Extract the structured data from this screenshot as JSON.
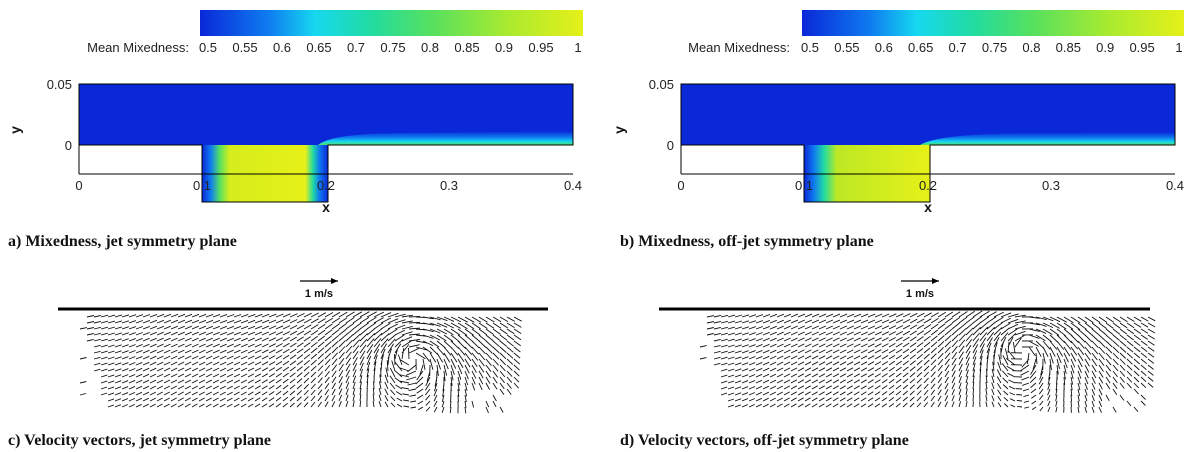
{
  "colors": {
    "low": "#0a28d8",
    "stops": [
      "#0a28d8",
      "#0f7cf0",
      "#16d8f0",
      "#22dca0",
      "#55e060",
      "#a8ea30",
      "#e6f018"
    ],
    "high": "#e6f018"
  },
  "panels": [
    {
      "caption": "a) Mixedness, jet symmetry plane",
      "colorbar": {
        "label": "Mean Mixedness:",
        "ticks": [
          "0.5",
          "0.55",
          "0.6",
          "0.65",
          "0.7",
          "0.75",
          "0.8",
          "0.85",
          "0.9",
          "0.95",
          "1"
        ]
      },
      "xlabel": "x",
      "ylabel": "y",
      "xticks": [
        "0",
        "0.1",
        "0.2",
        "0.3",
        "0.4"
      ],
      "yticks": [
        "0.05",
        "0"
      ]
    },
    {
      "caption": "b) Mixedness, off-jet symmetry plane",
      "colorbar": {
        "label": "Mean Mixedness:",
        "ticks": [
          "0.5",
          "0.55",
          "0.6",
          "0.65",
          "0.7",
          "0.75",
          "0.8",
          "0.85",
          "0.9",
          "0.95",
          "1"
        ]
      },
      "xlabel": "x",
      "ylabel": "y",
      "xticks": [
        "0",
        "0.1",
        "0.2",
        "0.3",
        "0.4"
      ],
      "yticks": [
        "0.05",
        "0"
      ]
    },
    {
      "caption": "c) Velocity vectors, jet symmetry plane",
      "scale_label": "1 m/s"
    },
    {
      "caption": "d) Velocity vectors, off-jet symmetry plane",
      "scale_label": "1 m/s"
    }
  ]
}
